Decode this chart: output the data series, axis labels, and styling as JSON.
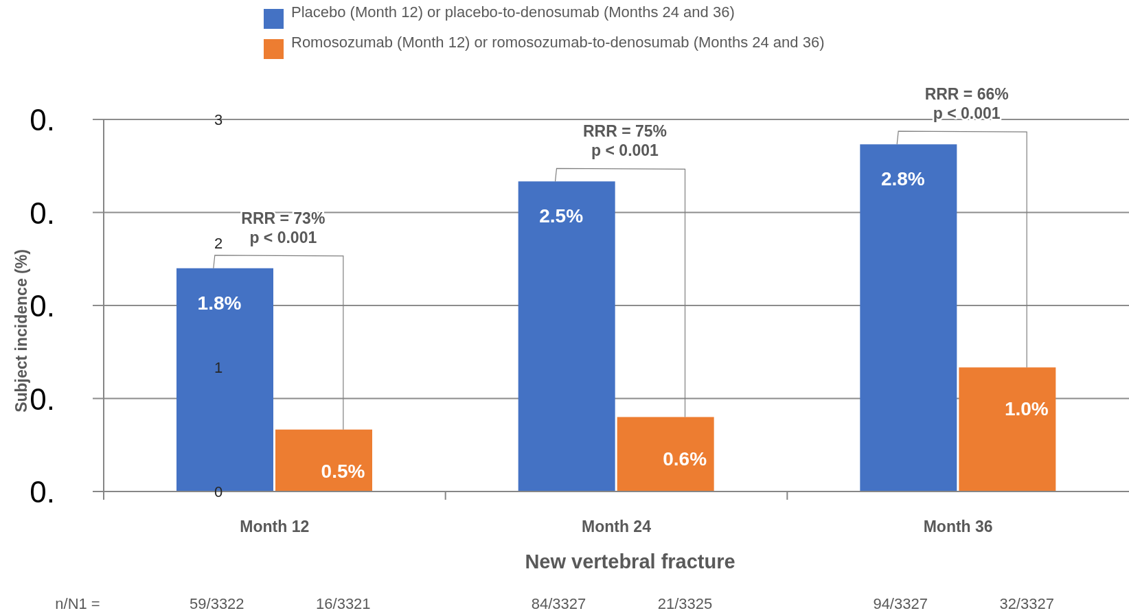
{
  "chart_data": {
    "type": "bar",
    "xlabel": "New vertebral fracture",
    "ylabel": "Subject incidence (%)",
    "categories": [
      "Month 12",
      "Month 24",
      "Month 36"
    ],
    "series": [
      {
        "name": "Placebo (Month 12) or placebo-to-denosumab (Months 24 and 36)",
        "color": "#4472c4",
        "values": [
          1.8,
          2.5,
          2.8
        ],
        "value_labels": [
          "1.8%",
          "2.5%",
          "2.8%"
        ]
      },
      {
        "name": "Romosozumab (Month 12) or romosozumab-to-denosumab (Months 24 and 36)",
        "color": "#ed7d31",
        "values": [
          0.5,
          0.6,
          1.0
        ],
        "value_labels": [
          "0.5%",
          "0.6%",
          "1.0%"
        ]
      }
    ],
    "ylim": [
      0,
      3
    ],
    "yticks": [
      0,
      1,
      2,
      3
    ],
    "ref_lines": [
      {
        "axis": "y",
        "value": 0.75,
        "color": "#8c8c8c"
      },
      {
        "axis": "y",
        "value": 1.5,
        "color": "#8c8c8c"
      },
      {
        "axis": "y",
        "value": 2.25,
        "color": "#8c8c8c"
      },
      {
        "axis": "y",
        "value": 3,
        "color": "#8c8c8c"
      }
    ],
    "legend": "top",
    "annotations": [
      "0.",
      "0.",
      "0.",
      "0.",
      "0.",
      "RRR = 73%\np < 0.001",
      "RRR = 75%\np < 0.001",
      "RRR = 66%\np < 0.001",
      "n/N1 =",
      "59/3322",
      "16/3321",
      "84/3327",
      "21/3325",
      "94/3327",
      "32/3327"
    ]
  }
}
